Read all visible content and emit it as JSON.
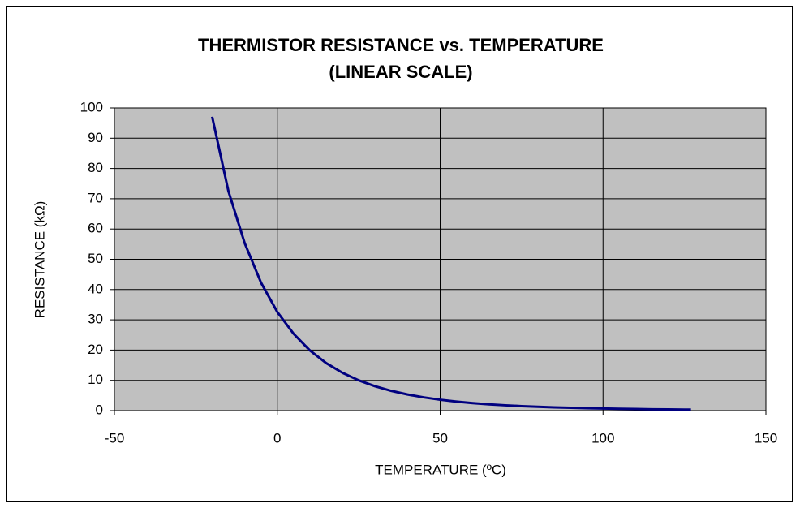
{
  "chart_data": {
    "type": "line",
    "title": "THERMISTOR RESISTANCE vs. TEMPERATURE",
    "subtitle": "(LINEAR SCALE)",
    "x_label": "TEMPERATURE (ºC)",
    "y_label": "RESISTANCE (kΩ)",
    "x": [
      -20,
      -15,
      -10,
      -5,
      0,
      5,
      10,
      15,
      20,
      25,
      30,
      35,
      40,
      45,
      50,
      55,
      60,
      65,
      70,
      75,
      80,
      85,
      90,
      95,
      100,
      105,
      110,
      115,
      120,
      125,
      127
    ],
    "values": [
      97.1,
      72.5,
      55.3,
      42.3,
      32.6,
      25.4,
      19.9,
      15.7,
      12.5,
      10.0,
      8.06,
      6.53,
      5.33,
      4.37,
      3.6,
      2.99,
      2.49,
      2.09,
      1.76,
      1.49,
      1.27,
      1.08,
      0.93,
      0.8,
      0.69,
      0.6,
      0.52,
      0.45,
      0.4,
      0.35,
      0.33
    ],
    "color": "#000080",
    "xlim": [
      -50,
      150
    ],
    "xticks": [
      -50,
      0,
      50,
      100,
      150
    ],
    "ylim": [
      0,
      100
    ],
    "yticks": [
      0,
      10,
      20,
      30,
      40,
      50,
      60,
      70,
      80,
      90,
      100
    ],
    "grid": true
  }
}
